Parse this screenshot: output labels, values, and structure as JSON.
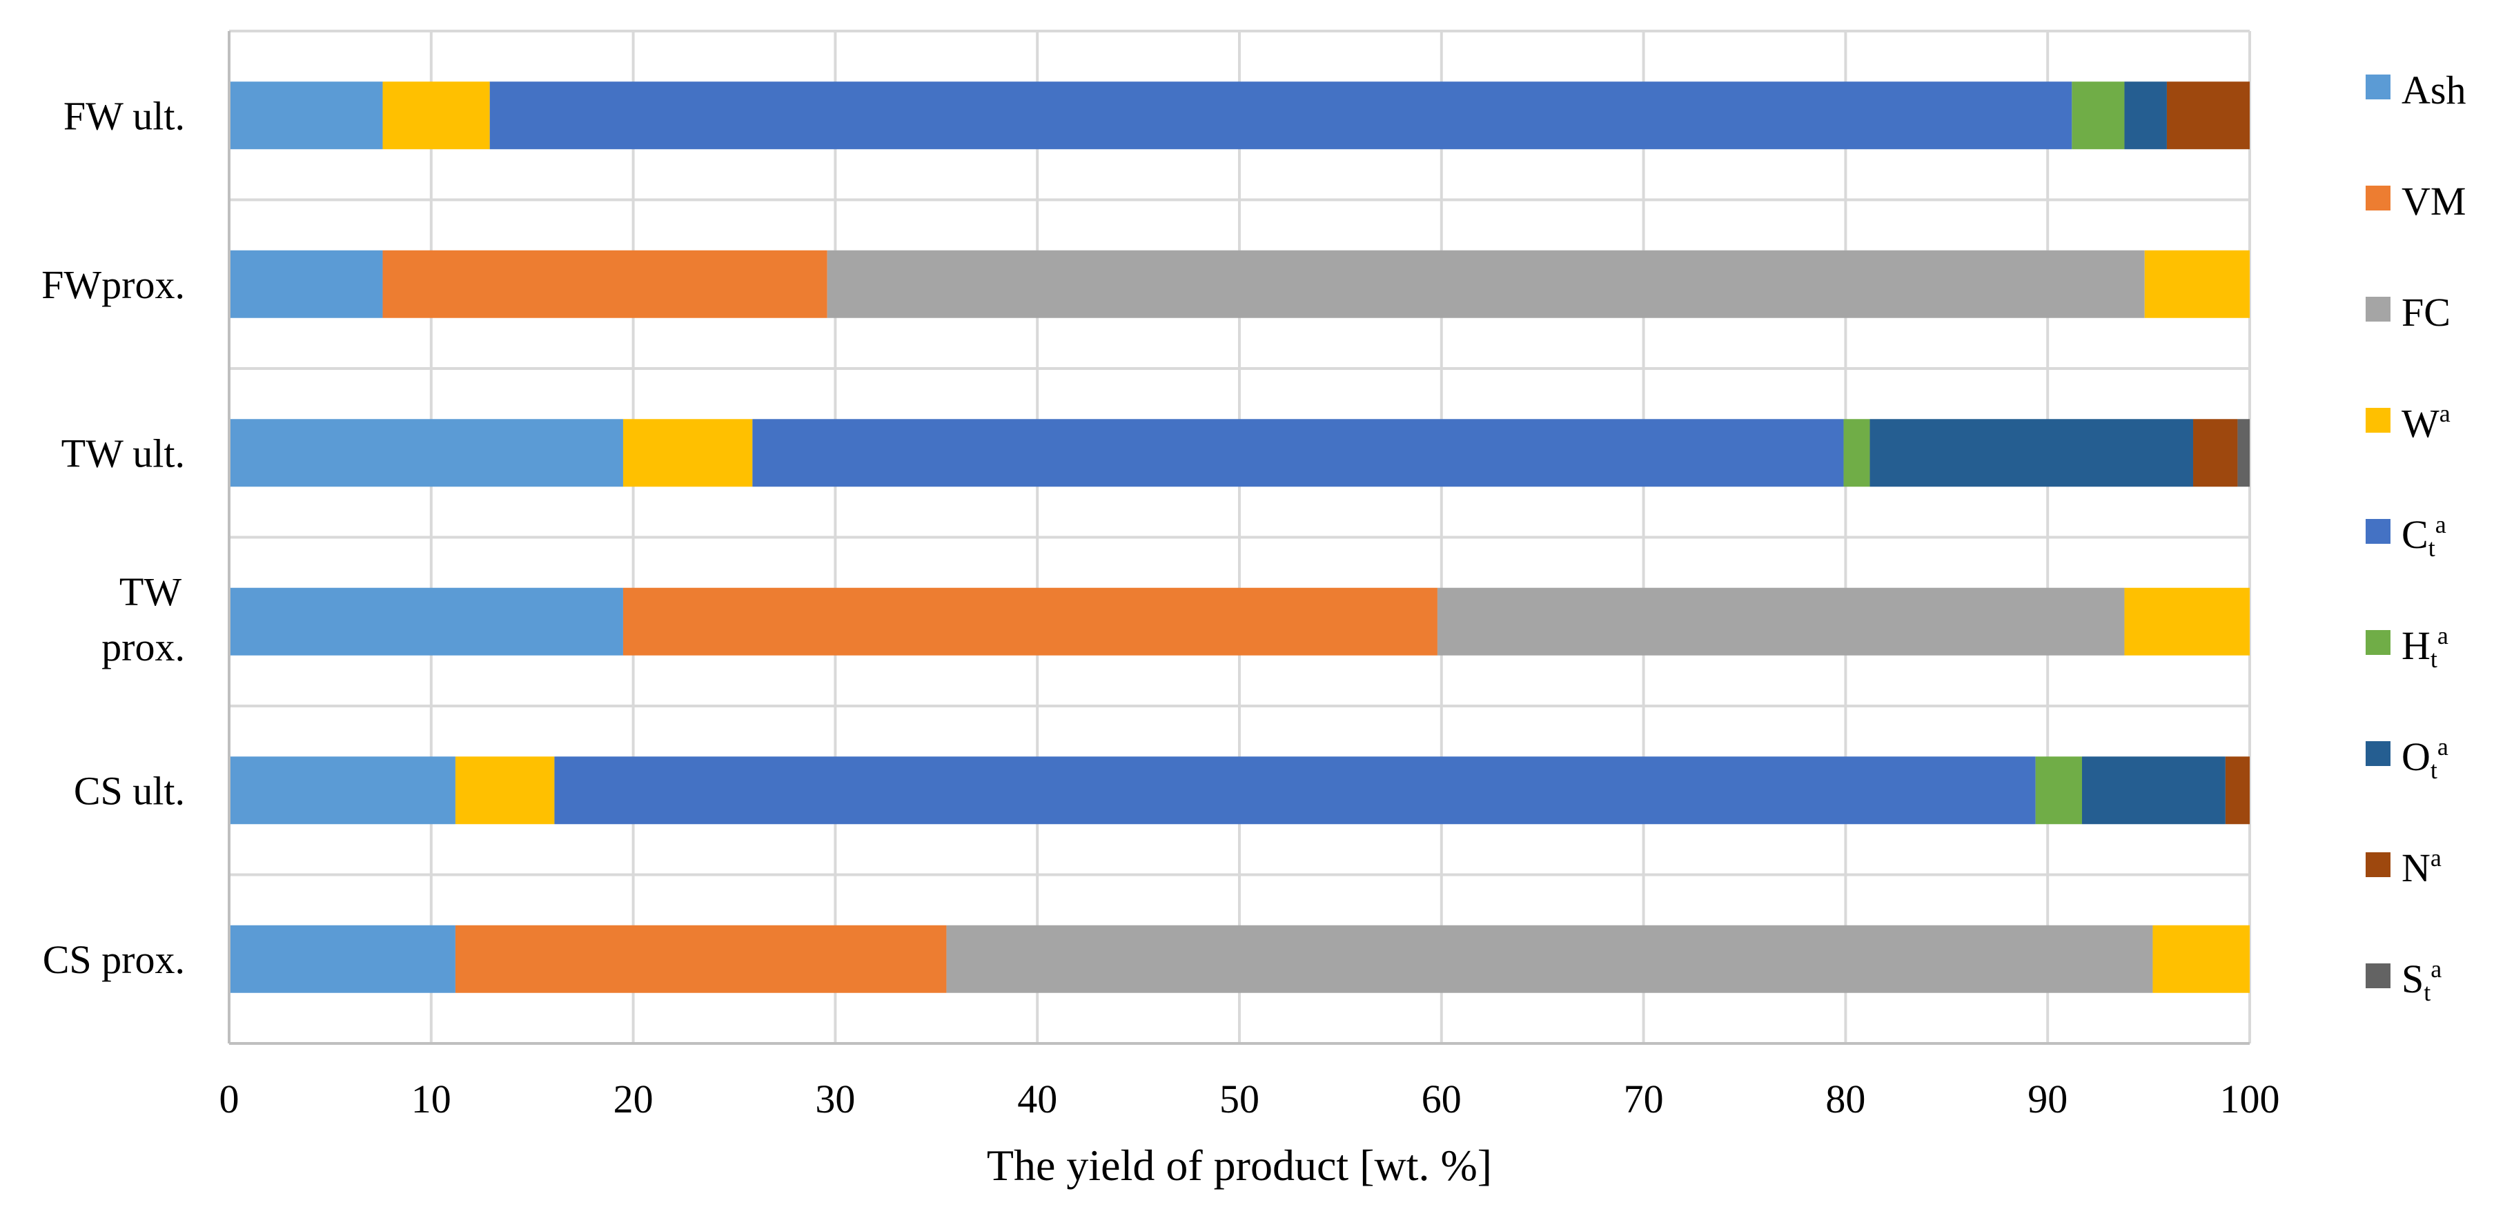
{
  "chart_data": {
    "type": "bar",
    "orientation": "horizontal",
    "stacked": true,
    "title": "",
    "xlabel": "The yield of product [wt. %]",
    "ylabel": "",
    "xlim": [
      0,
      100
    ],
    "xticks": [
      "0",
      "10",
      "20",
      "30",
      "40",
      "50",
      "60",
      "70",
      "80",
      "90",
      "100"
    ],
    "grid": true,
    "legend_position": "right",
    "categories": [
      {
        "line1": "FW ult.",
        "line2": ""
      },
      {
        "line1": "FWprox.",
        "line2": ""
      },
      {
        "line1": "TW ult.",
        "line2": ""
      },
      {
        "line1": "TW",
        "line2": "prox."
      },
      {
        "line1": "CS ult.",
        "line2": ""
      },
      {
        "line1": "CS prox.",
        "line2": ""
      }
    ],
    "series": [
      {
        "name": "Ash",
        "base": "Ash",
        "sub": "",
        "sup": "",
        "color": "#5B9BD5",
        "values": [
          7.6,
          7.6,
          19.5,
          19.5,
          11.2,
          11.2
        ]
      },
      {
        "name": "VM",
        "base": "VM",
        "sub": "",
        "sup": "",
        "color": "#ED7D31",
        "values": [
          0,
          22.0,
          0,
          40.3,
          0,
          24.3
        ]
      },
      {
        "name": "FC",
        "base": "FC",
        "sub": "",
        "sup": "",
        "color": "#A5A5A5",
        "values": [
          0,
          65.2,
          0,
          34.0,
          0,
          59.7
        ]
      },
      {
        "name": "W^a",
        "base": "W",
        "sub": "",
        "sup": "a",
        "color": "#FFC000",
        "values": [
          5.3,
          5.2,
          6.4,
          6.2,
          4.9,
          4.8
        ]
      },
      {
        "name": "C_t^a",
        "base": "C",
        "sub": "t",
        "sup": "a",
        "color": "#4472C4",
        "values": [
          78.3,
          0,
          54.0,
          0,
          73.3,
          0
        ]
      },
      {
        "name": "H_t^a",
        "base": "H",
        "sub": "t",
        "sup": "a",
        "color": "#70AD47",
        "values": [
          2.6,
          0,
          1.3,
          0,
          2.3,
          0
        ]
      },
      {
        "name": "O_t^a",
        "base": "O",
        "sub": "t",
        "sup": "a",
        "color": "#255E91",
        "values": [
          2.1,
          0,
          16.0,
          0,
          7.1,
          0
        ]
      },
      {
        "name": "N^a",
        "base": "N",
        "sub": "",
        "sup": "a",
        "color": "#9E480E",
        "values": [
          4.1,
          0,
          2.2,
          0,
          1.2,
          0
        ]
      },
      {
        "name": "S_t^a",
        "base": "S",
        "sub": "t",
        "sup": "a",
        "color": "#636363",
        "values": [
          0,
          0,
          0.6,
          0,
          0,
          0
        ]
      }
    ]
  }
}
